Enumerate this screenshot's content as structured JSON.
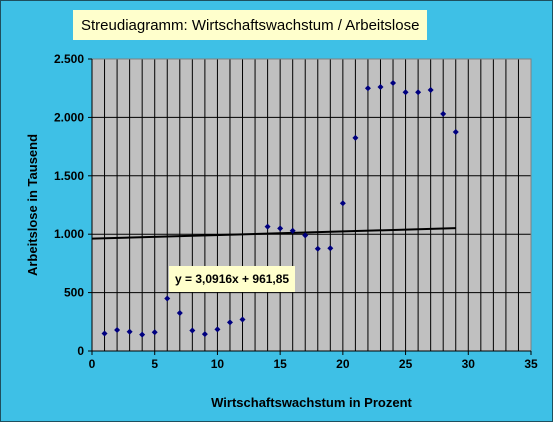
{
  "chart_data": {
    "type": "scatter",
    "title": "Streudiagramm: Wirtschaftswachstum / Arbeitslose",
    "xlabel": "Wirtschaftswachstum in Prozent",
    "ylabel": "Arbeitslose in Tausend",
    "xlim": [
      0,
      35
    ],
    "ylim": [
      0,
      2500
    ],
    "xticks": [
      0,
      5,
      10,
      15,
      20,
      25,
      30,
      35
    ],
    "yticks": [
      0,
      500,
      1000,
      1500,
      2000,
      2500
    ],
    "xtick_labels": [
      "0",
      "5",
      "10",
      "15",
      "20",
      "25",
      "30",
      "35"
    ],
    "ytick_labels": [
      "0",
      "500",
      "1.000",
      "1.500",
      "2.000",
      "2.500"
    ],
    "vertical_grid_step": 1,
    "plot_background": "#c0c0c0",
    "chart_background": "#3ec0e6",
    "label_background": "#ffffcc",
    "marker_color": "#00007f",
    "trendline_color": "#000000",
    "points": [
      {
        "x": 1,
        "y": 150
      },
      {
        "x": 2,
        "y": 180
      },
      {
        "x": 3,
        "y": 165
      },
      {
        "x": 4,
        "y": 140
      },
      {
        "x": 5,
        "y": 160
      },
      {
        "x": 6,
        "y": 450
      },
      {
        "x": 7,
        "y": 325
      },
      {
        "x": 8,
        "y": 175
      },
      {
        "x": 9,
        "y": 145
      },
      {
        "x": 10,
        "y": 185
      },
      {
        "x": 11,
        "y": 245
      },
      {
        "x": 12,
        "y": 270
      },
      {
        "x": 14,
        "y": 1065
      },
      {
        "x": 15,
        "y": 1050
      },
      {
        "x": 16,
        "y": 1030
      },
      {
        "x": 17,
        "y": 990
      },
      {
        "x": 18,
        "y": 875
      },
      {
        "x": 19,
        "y": 880
      },
      {
        "x": 20,
        "y": 1265
      },
      {
        "x": 21,
        "y": 1825
      },
      {
        "x": 22,
        "y": 2250
      },
      {
        "x": 23,
        "y": 2260
      },
      {
        "x": 24,
        "y": 2295
      },
      {
        "x": 25,
        "y": 2215
      },
      {
        "x": 26,
        "y": 2215
      },
      {
        "x": 27,
        "y": 2235
      },
      {
        "x": 28,
        "y": 2030
      },
      {
        "x": 29,
        "y": 1875
      }
    ],
    "trendline": {
      "equation": "y = 3,0916x + 961,85",
      "slope": 3.0916,
      "intercept": 961.85,
      "x_range": [
        0,
        29
      ]
    }
  }
}
